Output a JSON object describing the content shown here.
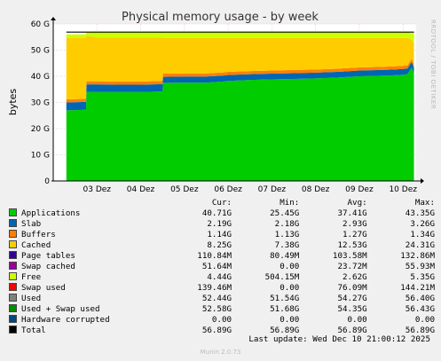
{
  "chart_data": {
    "type": "area",
    "title": "Physical memory usage - by week",
    "ylabel": "bytes",
    "side_label": "RRDTOOL / TOBI OETIKER",
    "ylim": [
      0,
      60
    ],
    "y_ticks": [
      {
        "value": 0,
        "label": "0"
      },
      {
        "value": 10,
        "label": "10 G"
      },
      {
        "value": 20,
        "label": "20 G"
      },
      {
        "value": 30,
        "label": "30 G"
      },
      {
        "value": 40,
        "label": "40 G"
      },
      {
        "value": 50,
        "label": "50 G"
      },
      {
        "value": 60,
        "label": "60 G"
      }
    ],
    "x_ticks": [
      {
        "value": 1,
        "label": "03 Dez"
      },
      {
        "value": 2,
        "label": "04 Dez"
      },
      {
        "value": 3,
        "label": "05 Dez"
      },
      {
        "value": 4,
        "label": "06 Dez"
      },
      {
        "value": 5,
        "label": "07 Dez"
      },
      {
        "value": 6,
        "label": "08 Dez"
      },
      {
        "value": 7,
        "label": "09 Dez"
      },
      {
        "value": 8,
        "label": "10 Dez"
      }
    ],
    "xlim": [
      0,
      8.3
    ],
    "series_x": [
      0.3,
      0.75,
      0.76,
      1.0,
      1.5,
      2.0,
      2.5,
      2.51,
      3.0,
      3.5,
      3.9,
      4.0,
      4.5,
      5.0,
      5.5,
      6.0,
      6.5,
      7.0,
      7.5,
      7.8,
      8.0,
      8.1,
      8.2,
      8.25
    ],
    "stack_series": [
      {
        "key": "applications",
        "color": "#00cc00",
        "values": [
          27,
          27.2,
          34,
          34,
          34,
          34,
          34.2,
          37.5,
          37.6,
          37.6,
          38,
          38.2,
          38.6,
          38.8,
          39,
          39.2,
          39.5,
          40,
          40.2,
          40.4,
          40.6,
          40.8,
          43.3,
          41
        ]
      },
      {
        "key": "slab",
        "color": "#0066b3",
        "values": [
          3,
          3,
          2.9,
          2.9,
          2.8,
          2.8,
          2.8,
          2.3,
          2.3,
          2.3,
          2.3,
          2.3,
          2.2,
          2.2,
          2.2,
          2.2,
          2.2,
          2.2,
          2.2,
          2.2,
          2.2,
          2.2,
          2.2,
          2.2
        ]
      },
      {
        "key": "buffers",
        "color": "#ff8000",
        "values": [
          1.2,
          1.2,
          1.2,
          1.2,
          1.2,
          1.2,
          1.2,
          1.2,
          1.2,
          1.2,
          1.2,
          1.2,
          1.2,
          1.2,
          1.2,
          1.2,
          1.2,
          1.2,
          1.2,
          1.2,
          1.2,
          1.2,
          1.2,
          1.1
        ]
      },
      {
        "key": "cached",
        "color": "#ffcc00",
        "values": [
          23.5,
          23.3,
          17.4,
          16.7,
          16.8,
          16.8,
          16.6,
          13.6,
          13.5,
          13.5,
          13.1,
          12.9,
          12.6,
          12.4,
          12.2,
          12,
          11.7,
          11.2,
          11,
          10.8,
          10.6,
          10.4,
          7.4,
          8.3
        ]
      },
      {
        "key": "free",
        "color": "#ccff00",
        "values": [
          1.3,
          1.3,
          1.4,
          2.2,
          2.0,
          2.1,
          2.0,
          2.3,
          2.3,
          2.3,
          2.3,
          2.3,
          2.3,
          2.3,
          2.3,
          2.3,
          2.3,
          2.3,
          2.3,
          2.3,
          2.3,
          2.3,
          2.3,
          4.4
        ]
      }
    ],
    "total_line": {
      "key": "total",
      "color": "#000000",
      "value": 56.89
    },
    "legend_headers": {
      "cur": "Cur:",
      "min": "Min:",
      "avg": "Avg:",
      "max": "Max:"
    },
    "legend": [
      {
        "name": "Applications",
        "color": "#00cc00",
        "cur": "40.71G",
        "min": "25.45G",
        "avg": "37.41G",
        "max": "43.35G"
      },
      {
        "name": "Slab",
        "color": "#0066b3",
        "cur": "2.19G",
        "min": "2.18G",
        "avg": "2.93G",
        "max": "3.26G"
      },
      {
        "name": "Buffers",
        "color": "#ff8000",
        "cur": "1.14G",
        "min": "1.13G",
        "avg": "1.27G",
        "max": "1.34G"
      },
      {
        "name": "Cached",
        "color": "#ffcc00",
        "cur": "8.25G",
        "min": "7.38G",
        "avg": "12.53G",
        "max": "24.31G"
      },
      {
        "name": "Page tables",
        "color": "#330099",
        "cur": "110.84M",
        "min": "80.49M",
        "avg": "103.58M",
        "max": "132.86M"
      },
      {
        "name": "Swap cached",
        "color": "#990099",
        "cur": "51.64M",
        "min": "0.00",
        "avg": "23.72M",
        "max": "55.93M"
      },
      {
        "name": "Free",
        "color": "#ccff00",
        "cur": "4.44G",
        "min": "504.15M",
        "avg": "2.62G",
        "max": "5.35G"
      },
      {
        "name": "Swap used",
        "color": "#ff0000",
        "cur": "139.46M",
        "min": "0.00",
        "avg": "76.09M",
        "max": "144.21M"
      },
      {
        "name": "Used",
        "color": "#808080",
        "cur": "52.44G",
        "min": "51.54G",
        "avg": "54.27G",
        "max": "56.40G"
      },
      {
        "name": "Used + Swap used",
        "color": "#008f00",
        "cur": "52.58G",
        "min": "51.68G",
        "avg": "54.35G",
        "max": "56.43G"
      },
      {
        "name": "Hardware corrupted",
        "color": "#00487d",
        "cur": "0.00",
        "min": "0.00",
        "avg": "0.00",
        "max": "0.00"
      },
      {
        "name": "Total",
        "color": "#000000",
        "cur": "56.89G",
        "min": "56.89G",
        "avg": "56.89G",
        "max": "56.89G"
      }
    ]
  },
  "footer": {
    "last_update": "Last update: Wed Dec 10 21:00:12 2025",
    "version": "Munin 2.0.73"
  }
}
